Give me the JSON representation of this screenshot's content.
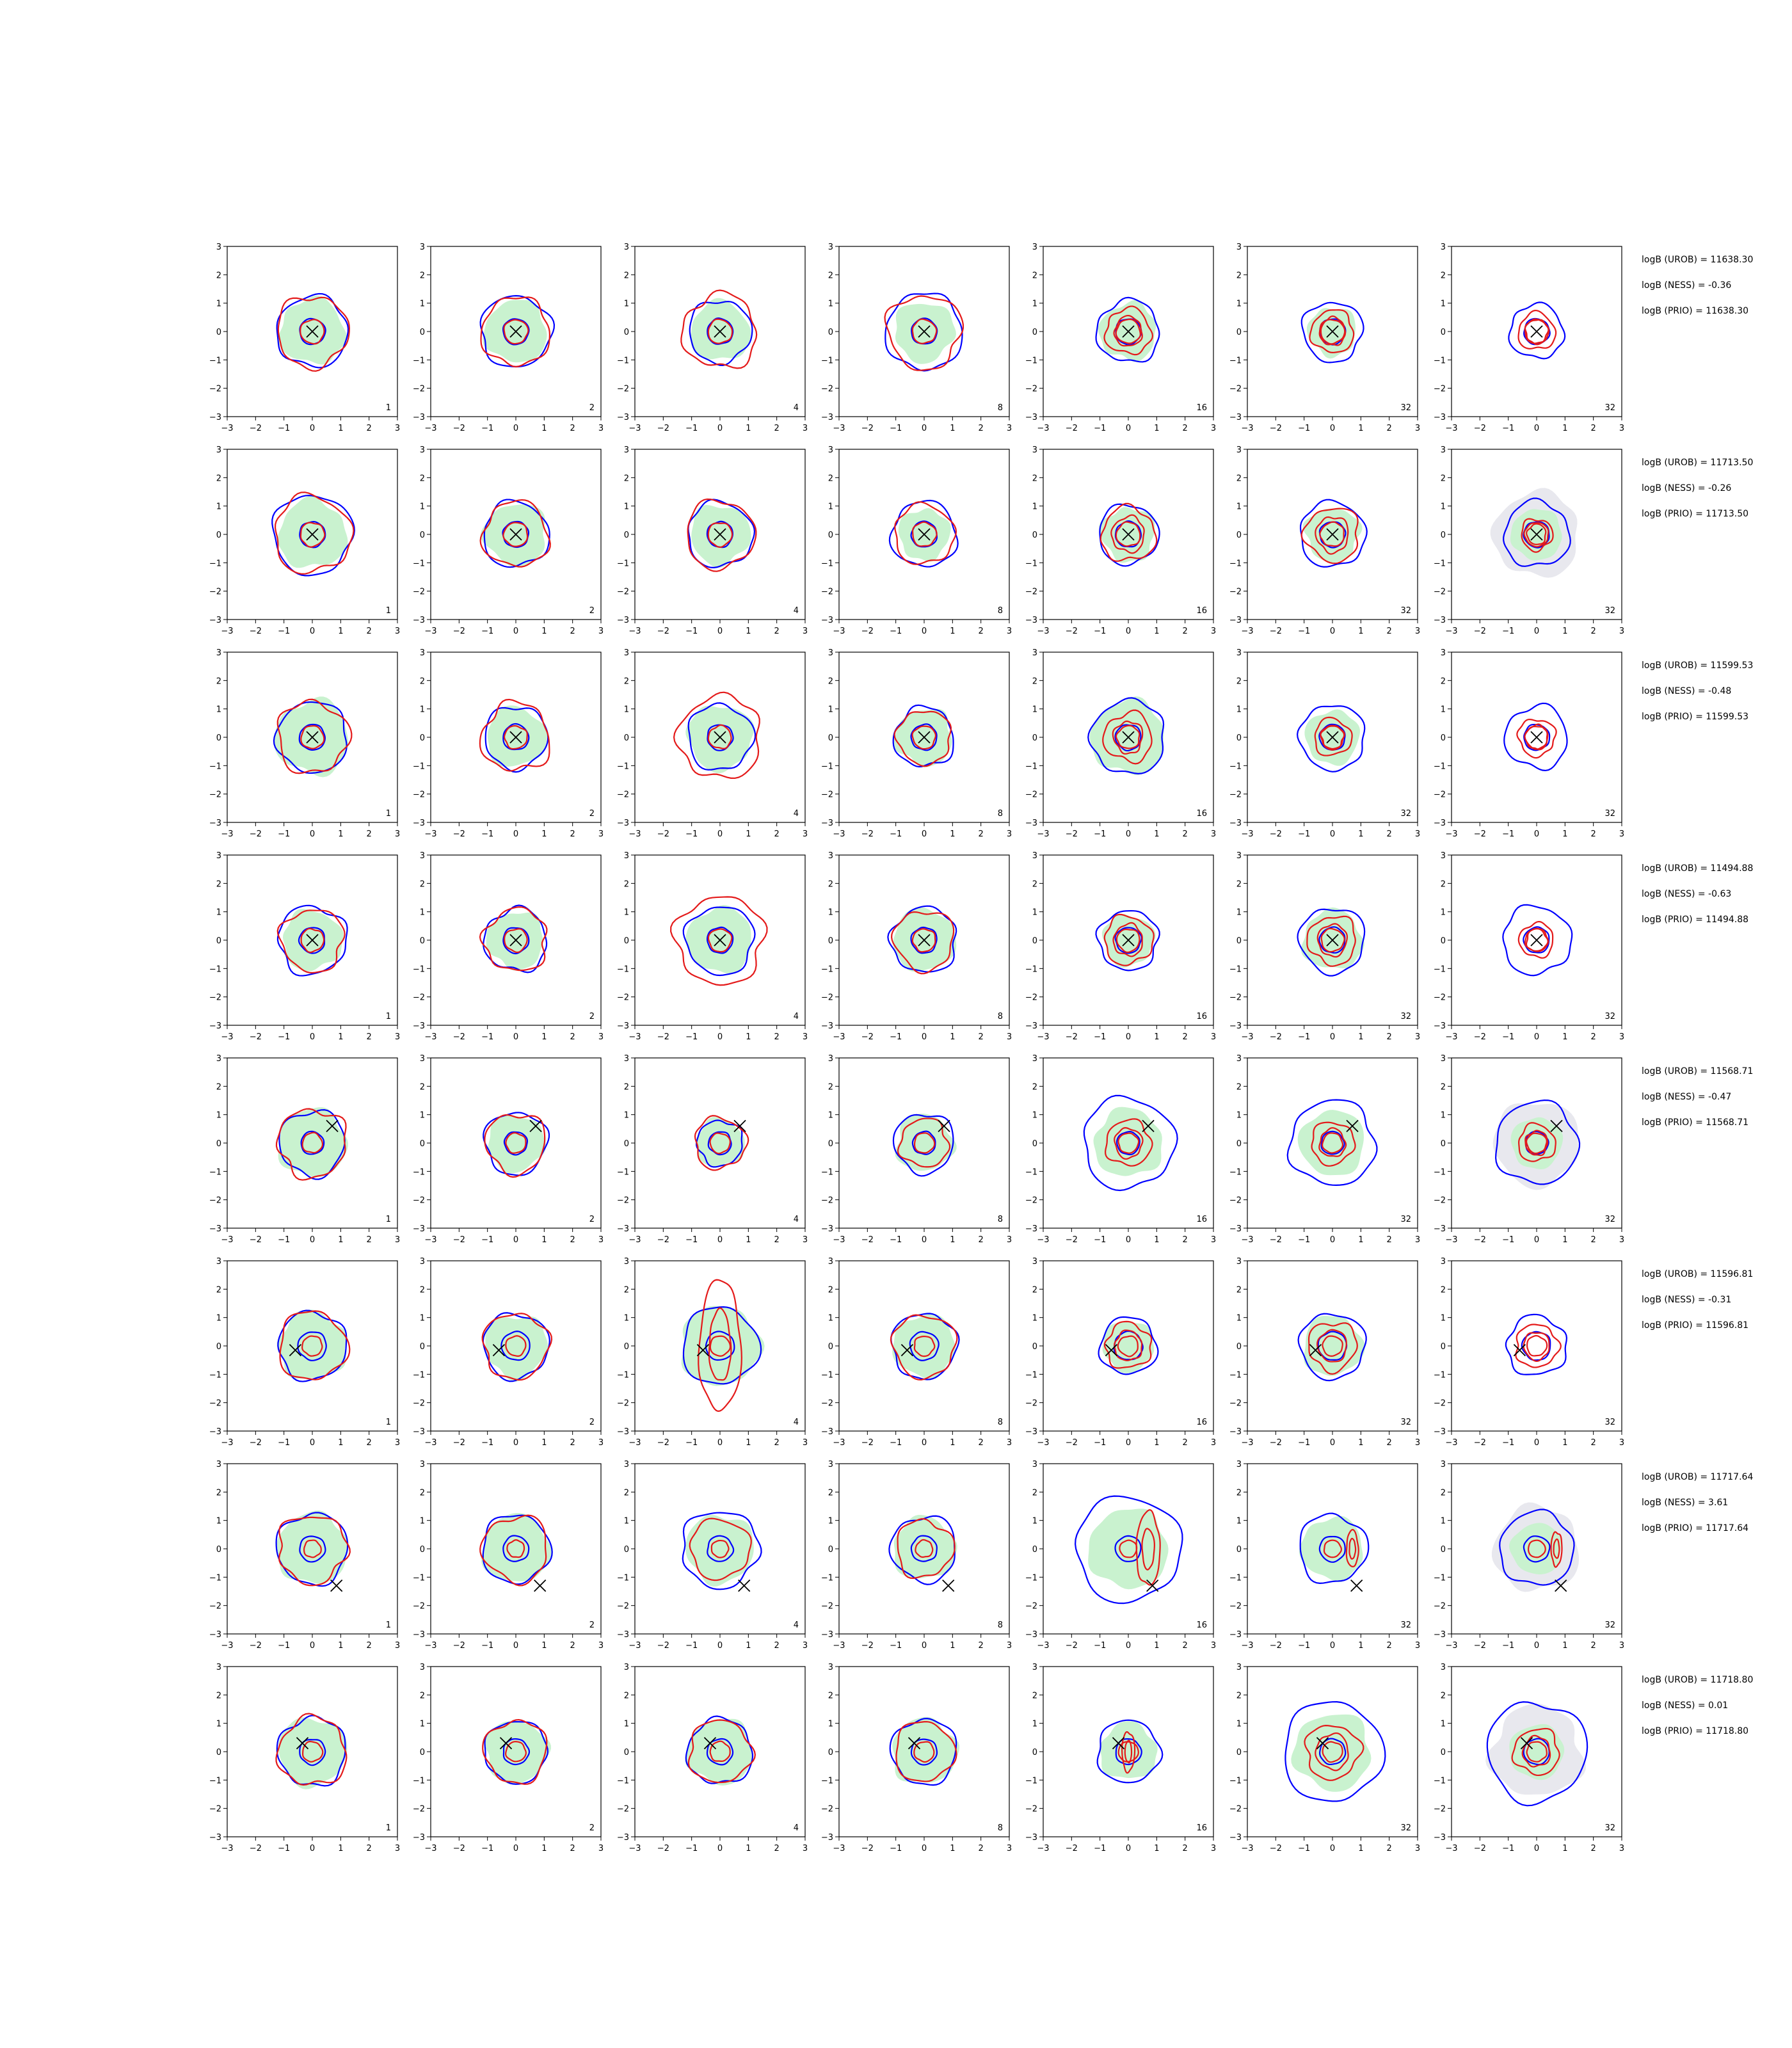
{
  "chart_data": {
    "type": "contour-grid",
    "rows": 8,
    "cols": 7,
    "xlim": [
      -3,
      3
    ],
    "ylim": [
      -3,
      3
    ],
    "x_ticks": [
      -3,
      -2,
      -1,
      0,
      1,
      2,
      3
    ],
    "y_ticks": [
      -3,
      -2,
      -1,
      0,
      1,
      2,
      3
    ],
    "tick_labels": [
      "−3",
      "−2",
      "−1",
      "0",
      "1",
      "2",
      "3"
    ],
    "column_badges": [
      "1",
      "2",
      "4",
      "8",
      "16",
      "32",
      "32"
    ],
    "colors": {
      "blue_contour": "#0000ff",
      "red_contour": "#e41a1a",
      "green_fill": "#c9f2cf",
      "gray_fill": "#e8e8ee",
      "marker": "#000000"
    },
    "row_annotations": [
      {
        "urob": "logB (UROB) = 11638.30",
        "ness": "logB (NESS) = -0.36",
        "prio": "logB (PRIO) = 11638.30"
      },
      {
        "urob": "logB (UROB) = 11713.50",
        "ness": "logB (NESS) = -0.26",
        "prio": "logB (PRIO) = 11713.50"
      },
      {
        "urob": "logB (UROB) = 11599.53",
        "ness": "logB (NESS) = -0.48",
        "prio": "logB (PRIO) = 11599.53"
      },
      {
        "urob": "logB (UROB) = 11494.88",
        "ness": "logB (NESS) = -0.63",
        "prio": "logB (PRIO) = 11494.88"
      },
      {
        "urob": "logB (UROB) = 11568.71",
        "ness": "logB (NESS) = -0.47",
        "prio": "logB (PRIO) = 11568.71"
      },
      {
        "urob": "logB (UROB) = 11596.81",
        "ness": "logB (NESS) = -0.31",
        "prio": "logB (PRIO) = 11596.81"
      },
      {
        "urob": "logB (UROB) = 11717.64",
        "ness": "logB (NESS) = 3.61",
        "prio": "logB (PRIO) = 11717.64"
      },
      {
        "urob": "logB (UROB) = 11718.80",
        "ness": "logB (NESS) = 0.01",
        "prio": "logB (PRIO) = 11718.80"
      }
    ],
    "true_points": [
      {
        "x": 0.0,
        "y": 0.0
      },
      {
        "x": 0.0,
        "y": 0.0
      },
      {
        "x": 0.0,
        "y": 0.0
      },
      {
        "x": 0.0,
        "y": 0.0
      },
      {
        "x": 0.7,
        "y": 0.6
      },
      {
        "x": -0.6,
        "y": -0.15
      },
      {
        "x": 0.85,
        "y": -1.3
      },
      {
        "x": -0.35,
        "y": 0.3
      }
    ],
    "green_radius": [
      [
        1.15,
        1.1,
        1.05,
        1.05,
        1.0,
        0.85,
        0
      ],
      [
        1.2,
        1.1,
        1.05,
        0.9,
        0.95,
        0.95,
        1.5
      ],
      [
        1.3,
        1.05,
        1.15,
        1.0,
        1.3,
        0.95,
        0
      ],
      [
        1.05,
        1.0,
        1.15,
        1.1,
        0.9,
        1.05,
        0
      ],
      [
        1.2,
        1.0,
        0.85,
        1.0,
        1.2,
        1.15,
        1.5
      ],
      [
        1.2,
        1.1,
        1.4,
        1.1,
        0.9,
        1.05,
        0
      ],
      [
        1.25,
        1.2,
        1.2,
        1.1,
        1.4,
        1.1,
        1.5
      ],
      [
        1.2,
        1.1,
        1.15,
        1.15,
        1.0,
        1.35,
        1.6
      ]
    ],
    "blue_outer_radius": [
      [
        1.25,
        1.25,
        1.1,
        1.35,
        1.1,
        1.05,
        0.95
      ],
      [
        1.4,
        1.15,
        1.15,
        1.15,
        1.05,
        1.15,
        1.15
      ],
      [
        1.25,
        1.1,
        1.15,
        1.05,
        1.3,
        1.15,
        1.1
      ],
      [
        1.2,
        1.1,
        1.2,
        1.15,
        1.05,
        1.15,
        1.2
      ],
      [
        1.15,
        1.1,
        0.8,
        1.05,
        1.6,
        1.5,
        1.45
      ],
      [
        1.2,
        1.15,
        1.35,
        1.15,
        1.0,
        1.15,
        1.05
      ],
      [
        1.25,
        1.2,
        1.35,
        1.15,
        1.85,
        1.2,
        1.3
      ],
      [
        1.2,
        1.1,
        1.15,
        1.15,
        1.1,
        1.75,
        1.75
      ]
    ],
    "blue_inner_radius": [
      0.45,
      0.45,
      0.45,
      0.45,
      0.4,
      0.5,
      0.45,
      0.45
    ],
    "red_outer_radius": [
      [
        1.25,
        1.2,
        1.3,
        1.3,
        0.8,
        0.75,
        0.65
      ],
      [
        1.35,
        1.15,
        1.2,
        1.05,
        0.95,
        0.95,
        0.55
      ],
      [
        1.25,
        1.2,
        1.45,
        0.95,
        0.85,
        0.65,
        0.65
      ],
      [
        1.1,
        1.1,
        1.55,
        1.05,
        0.85,
        0.85,
        0.6
      ],
      [
        1.2,
        1.05,
        0.9,
        0.85,
        0.8,
        0.75,
        0.65
      ],
      [
        1.2,
        1.15,
        2.3,
        1.1,
        0.8,
        0.85,
        0.75
      ],
      [
        1.2,
        1.15,
        1.05,
        1.0,
        1.3,
        0.65,
        0.6
      ],
      [
        1.2,
        1.1,
        1.1,
        1.05,
        0.7,
        0.95,
        0.8
      ]
    ],
    "red_inner_radius": [
      0.42,
      0.42,
      0.4,
      0.4,
      0.35,
      0.35,
      0.3,
      0.35
    ],
    "elongated_red_columns": [
      [
        5,
        2
      ],
      [
        6,
        4
      ],
      [
        6,
        5
      ],
      [
        6,
        6
      ],
      [
        7,
        4
      ]
    ]
  }
}
